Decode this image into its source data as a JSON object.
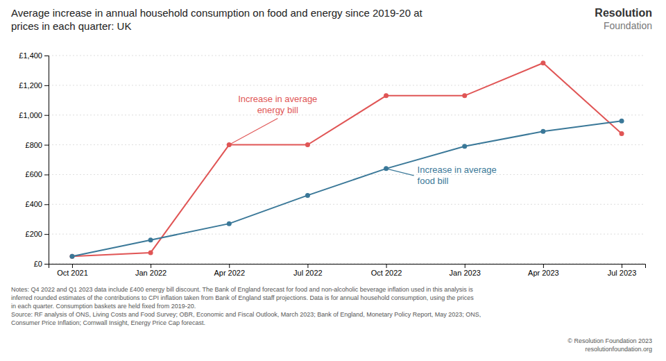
{
  "chart_data": {
    "type": "line",
    "title": "Average increase in annual household consumption on food and energy since 2019-20 at\nprices in each quarter: UK",
    "logo": "Resolution\nFoundation",
    "categories": [
      "Oct 2021",
      "Jan 2022",
      "Apr 2022",
      "Jul 2022",
      "Oct 2022",
      "Jan 2023",
      "Apr 2023",
      "Jul 2023"
    ],
    "series": [
      {
        "color": "#e05555",
        "values": [
          50,
          75,
          800,
          800,
          1130,
          1130,
          1350,
          875
        ]
      },
      {
        "color": "#3a7898",
        "values": [
          50,
          160,
          270,
          460,
          640,
          790,
          890,
          960
        ]
      }
    ],
    "marker": "circle",
    "ylim": [
      0,
      1400
    ],
    "yticks": [
      {
        "value": 0,
        "label": "£0"
      },
      {
        "value": 200,
        "label": "£200"
      },
      {
        "value": 400,
        "label": "£400"
      },
      {
        "value": 600,
        "label": "£600"
      },
      {
        "value": 800,
        "label": "£800"
      },
      {
        "value": 1000,
        "label": "£1,000"
      },
      {
        "value": 1200,
        "label": "£1,200"
      },
      {
        "value": 1400,
        "label": "£1,400"
      }
    ],
    "grid": true,
    "annotations": [
      {
        "text": "Increase in average\nenergy bill"
      },
      {
        "text": "Increase in average\nfood bill"
      }
    ],
    "notes": "Notes: Q4 2022 and Q1 2023 data include £400 energy bill discount. The Bank of England forecast for food and non-alcoholic beverage inflation used in this analysis is\ninferred rounded estimates of the contributions to CPI inflation taken from Bank of England staff projections. Data is for annual household consumption, using the prices\nin each quarter. Consumption baskets are held fixed from 2019-20.\nSource: RF analysis of ONS, Living Costs and Food Survey; OBR, Economic and Fiscal Outlook, March 2023; Bank of England, Monetary Policy Report, May 2023; ONS,\nConsumer Price Inflation; Cornwall Insight, Energy Price Cap forecast.",
    "copyright": "© Resolution Foundation 2023\nresolutionfoundation.org"
  }
}
